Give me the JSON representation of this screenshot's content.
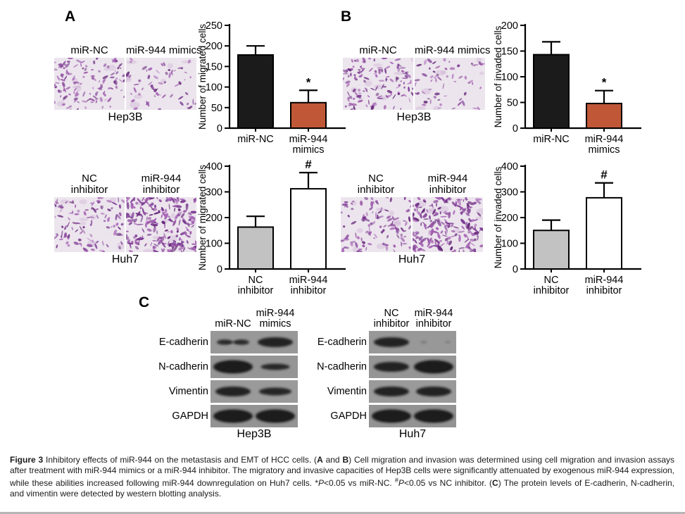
{
  "figure_label": "Figure 3",
  "panels": {
    "a": "A",
    "b": "B",
    "c": "C"
  },
  "micrographs": {
    "background": "#ece5ed",
    "stain_colors": [
      "#8d4fa0",
      "#7a3b92",
      "#a866b8",
      "#6b2d7e",
      "#9b59a8"
    ],
    "groups": [
      {
        "panel": "A",
        "cell_line": "Hep3B",
        "columns": [
          {
            "label_lines": [
              "miR-NC"
            ],
            "density": "dense"
          },
          {
            "label_lines": [
              "miR-944 mimics"
            ],
            "density": "sparse"
          }
        ]
      },
      {
        "panel": "B",
        "cell_line": "Hep3B",
        "columns": [
          {
            "label_lines": [
              "miR-NC"
            ],
            "density": "dense"
          },
          {
            "label_lines": [
              "miR-944 mimics"
            ],
            "density": "sparse"
          }
        ]
      },
      {
        "panel": "A",
        "cell_line": "Huh7",
        "columns": [
          {
            "label_lines": [
              "NC",
              "inhibitor"
            ],
            "density": "medium"
          },
          {
            "label_lines": [
              "miR-944",
              "inhibitor"
            ],
            "density": "very-dense"
          }
        ]
      },
      {
        "panel": "B",
        "cell_line": "Huh7",
        "columns": [
          {
            "label_lines": [
              "NC",
              "inhibitor"
            ],
            "density": "medium"
          },
          {
            "label_lines": [
              "miR-944",
              "inhibitor"
            ],
            "density": "very-dense"
          }
        ]
      }
    ]
  },
  "chart_data": [
    {
      "type": "bar",
      "panel": "A",
      "cell_line": "Hep3B",
      "ylabel": "Number of migrated cells",
      "ylim": [
        0,
        250
      ],
      "ytick_step": 50,
      "categories": [
        "miR-NC",
        "miR-944 mimics"
      ],
      "category_lines": [
        [
          "miR-NC"
        ],
        [
          "miR-944",
          "mimics"
        ]
      ],
      "values": [
        178,
        62
      ],
      "errors": [
        22,
        30
      ],
      "annotations": [
        "",
        "*"
      ],
      "bar_colors": [
        "#1b1b1b",
        "#c05838"
      ]
    },
    {
      "type": "bar",
      "panel": "B",
      "cell_line": "Hep3B",
      "ylabel": "Number of invaded cells",
      "ylim": [
        0,
        200
      ],
      "ytick_step": 50,
      "categories": [
        "miR-NC",
        "miR-944 mimics"
      ],
      "category_lines": [
        [
          "miR-NC"
        ],
        [
          "miR-944",
          "mimics"
        ]
      ],
      "values": [
        143,
        48
      ],
      "errors": [
        25,
        25
      ],
      "annotations": [
        "",
        "*"
      ],
      "bar_colors": [
        "#1b1b1b",
        "#c05838"
      ]
    },
    {
      "type": "bar",
      "panel": "A",
      "cell_line": "Huh7",
      "ylabel": "Number of migrated cells",
      "ylim": [
        0,
        400
      ],
      "ytick_step": 100,
      "categories": [
        "NC inhibitor",
        "miR-944 inhibitor"
      ],
      "category_lines": [
        [
          "NC",
          "inhibitor"
        ],
        [
          "miR-944",
          "inhibitor"
        ]
      ],
      "values": [
        163,
        312
      ],
      "errors": [
        42,
        63
      ],
      "annotations": [
        "",
        "#"
      ],
      "bar_colors": [
        "#c2c2c2",
        "#ffffff"
      ]
    },
    {
      "type": "bar",
      "panel": "B",
      "cell_line": "Huh7",
      "ylabel": "Number of invaded cells",
      "ylim": [
        0,
        400
      ],
      "ytick_step": 100,
      "categories": [
        "NC inhibitor",
        "miR-944 inhibitor"
      ],
      "category_lines": [
        [
          "NC",
          "inhibitor"
        ],
        [
          "miR-944",
          "inhibitor"
        ]
      ],
      "values": [
        150,
        277
      ],
      "errors": [
        40,
        58
      ],
      "annotations": [
        "",
        "#"
      ],
      "bar_colors": [
        "#c2c2c2",
        "#ffffff"
      ]
    }
  ],
  "western_blot": {
    "membrane_color": "#969696",
    "band_color": "#1c1c1c",
    "blocks": [
      {
        "cell_line": "Hep3B",
        "lane_labels": [
          [
            "miR-NC"
          ],
          [
            "miR-944",
            "mimics"
          ]
        ],
        "rows": [
          {
            "protein": "E-cadherin",
            "bands": [
              "weak-double",
              "strong"
            ]
          },
          {
            "protein": "N-cadherin",
            "bands": [
              "very-strong",
              "medium"
            ]
          },
          {
            "protein": "Vimentin",
            "bands": [
              "strong",
              "medium-strong"
            ]
          },
          {
            "protein": "GAPDH",
            "bands": [
              "very-strong",
              "very-strong"
            ]
          }
        ]
      },
      {
        "cell_line": "Huh7",
        "lane_labels": [
          [
            "NC",
            "inhibitor"
          ],
          [
            "miR-944",
            "inhibitor"
          ]
        ],
        "rows": [
          {
            "protein": "E-cadherin",
            "bands": [
              "strong",
              "faint"
            ]
          },
          {
            "protein": "N-cadherin",
            "bands": [
              "strong",
              "very-strong"
            ]
          },
          {
            "protein": "Vimentin",
            "bands": [
              "strong",
              "strong"
            ]
          },
          {
            "protein": "GAPDH",
            "bands": [
              "very-strong",
              "very-strong"
            ]
          }
        ]
      }
    ]
  },
  "caption": {
    "segments": [
      {
        "text": "Figure 3 ",
        "bold": true
      },
      {
        "text": "Inhibitory effects of miR-944 on the metastasis and EMT of HCC cells. ("
      },
      {
        "text": "A",
        "bold": true
      },
      {
        "text": " and "
      },
      {
        "text": "B",
        "bold": true
      },
      {
        "text": ") Cell migration and invasion was determined using cell migration and invasion assays after treatment with miR-944 mimics or a miR-944 inhibitor. The migratory and invasive capacities of Hep3B cells were significantly attenuated by exogenous miR-944 expression, while these abilities increased following miR-944 downregulation on Huh7 cells. *"
      },
      {
        "text": "P",
        "italic": true
      },
      {
        "text": "<0.05 vs miR-NC. "
      },
      {
        "text": "#",
        "sup": true
      },
      {
        "text": "P",
        "italic": true
      },
      {
        "text": "<0.05 vs NC inhibitor. ("
      },
      {
        "text": "C",
        "bold": true
      },
      {
        "text": ") The protein levels of E-cadherin, N-cadherin, and vimentin were detected by western blotting analysis."
      }
    ]
  }
}
